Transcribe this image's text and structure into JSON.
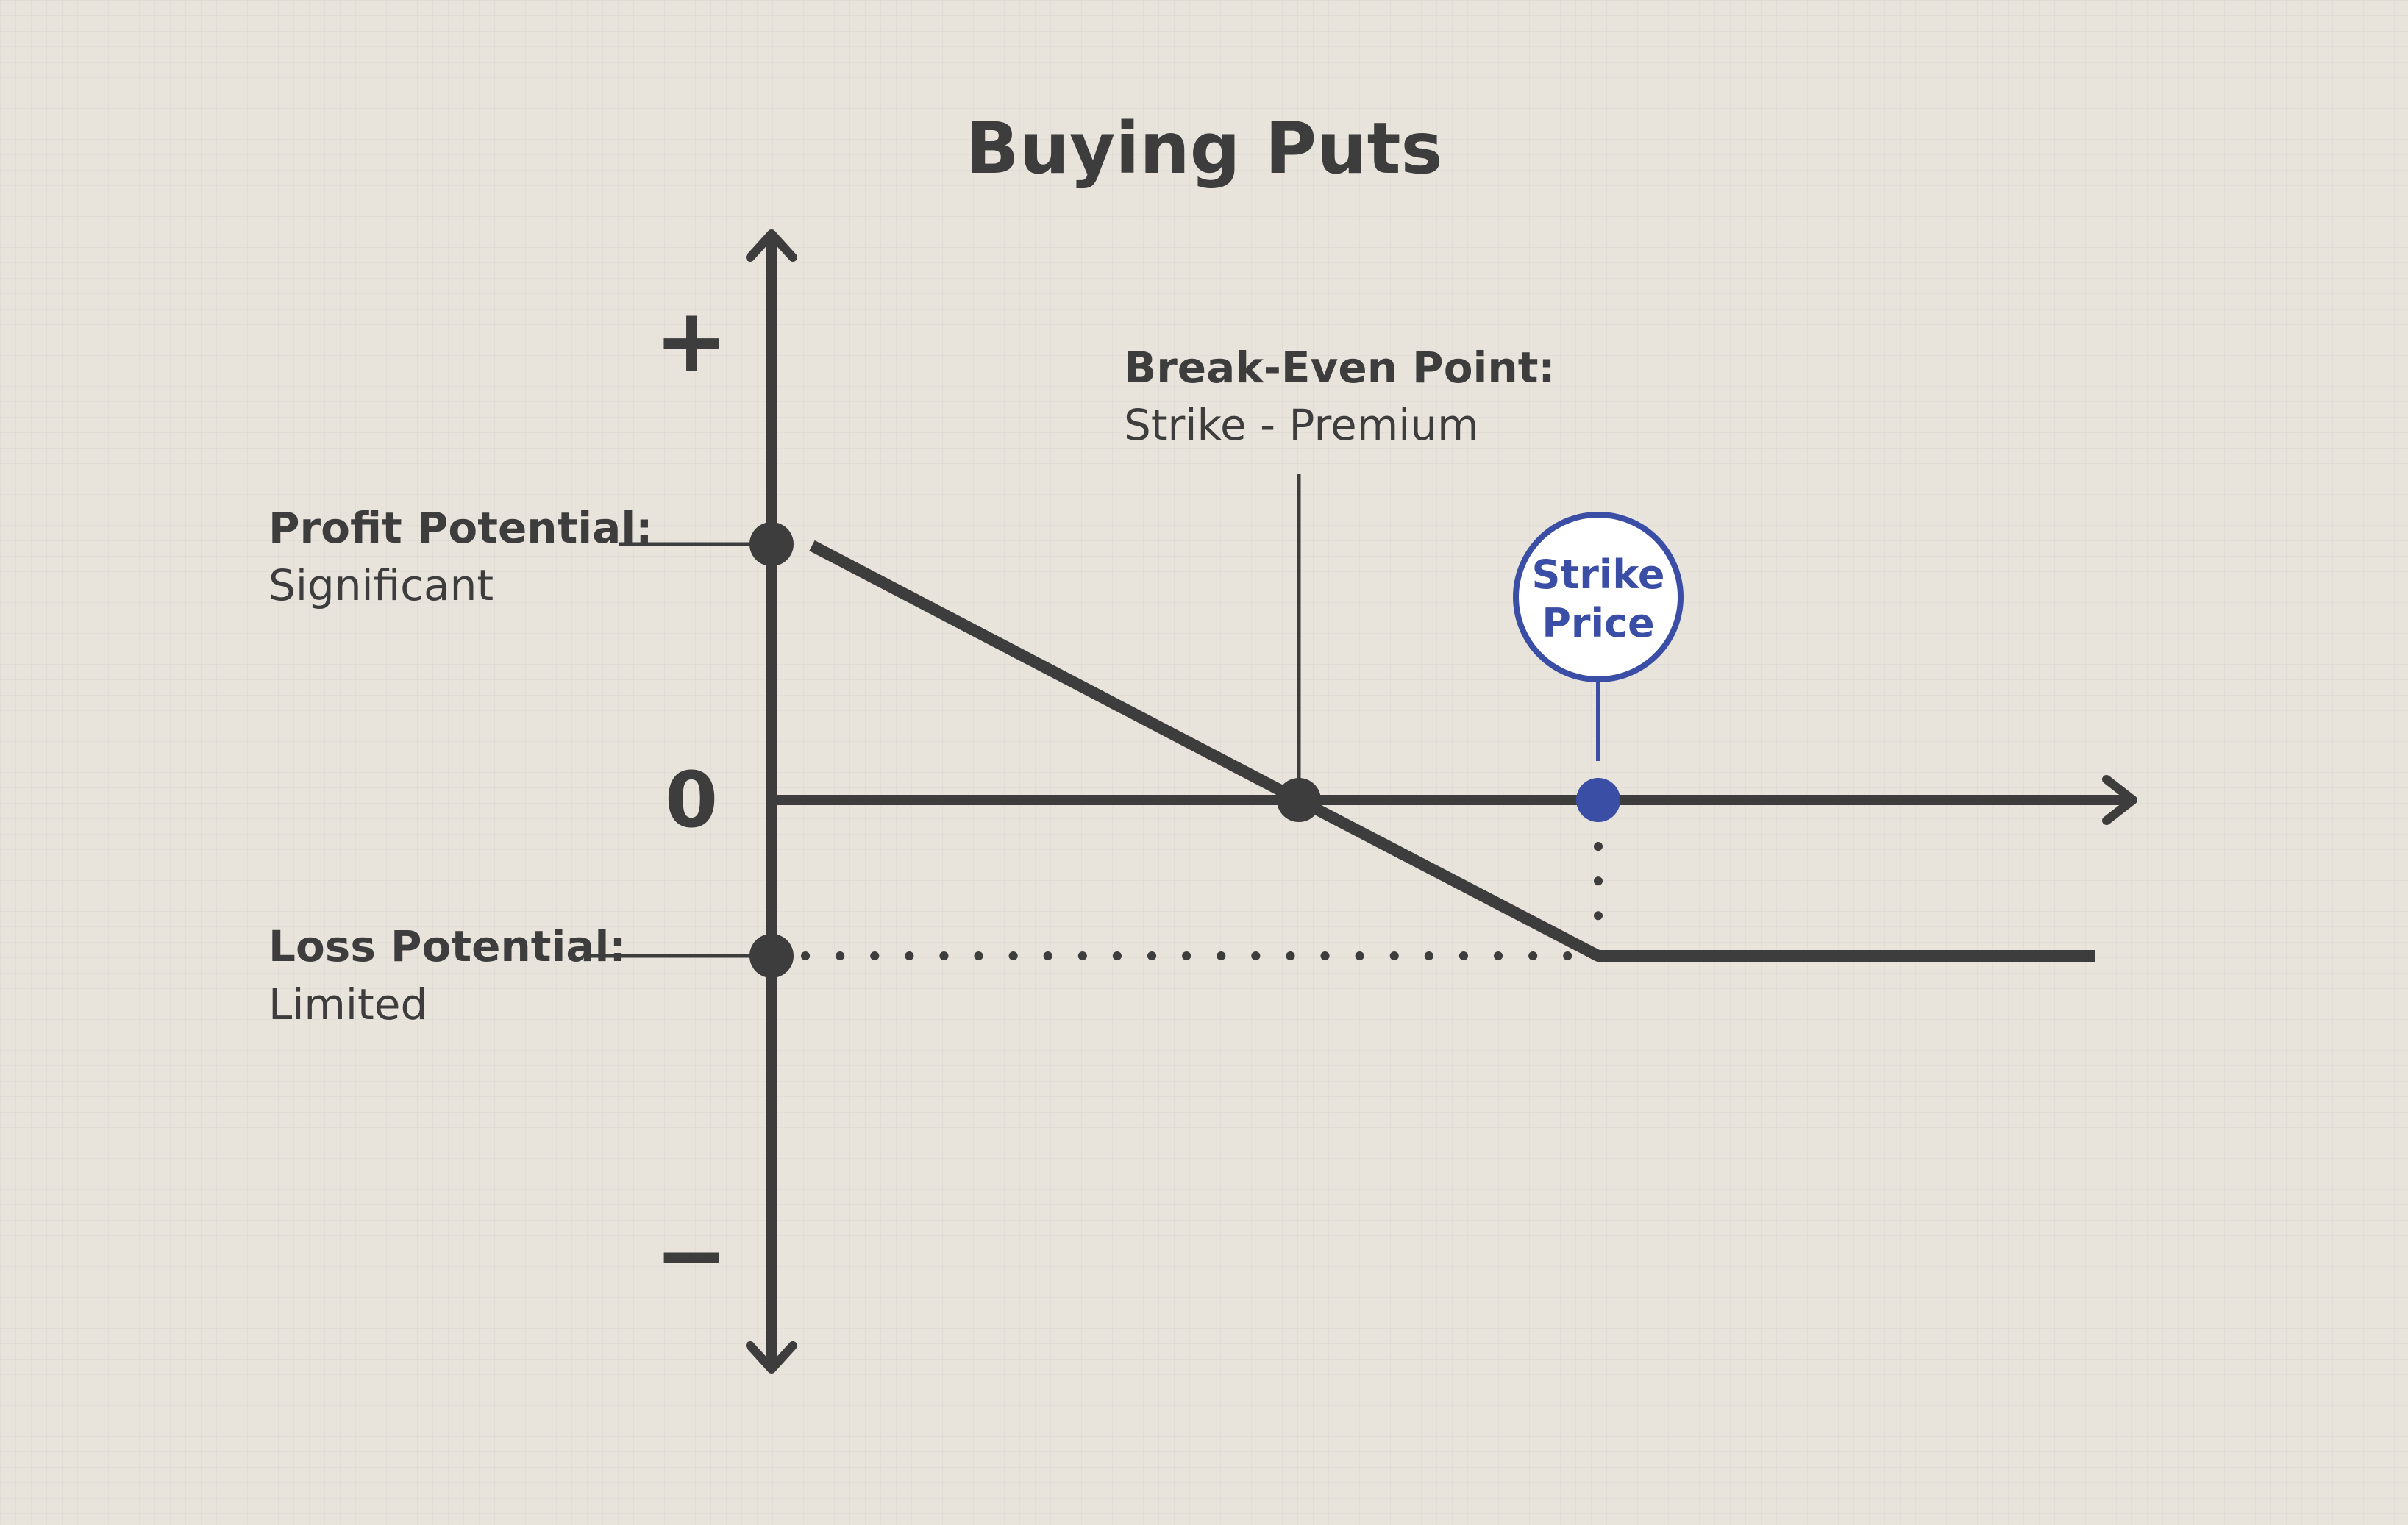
{
  "title": "Buying Puts",
  "y_axis": {
    "plus_sign": "+",
    "zero_label": "0",
    "minus_sign": "−"
  },
  "profit": {
    "heading": "Profit Potential:",
    "value": "Significant"
  },
  "loss": {
    "heading": "Loss Potential:",
    "value": "Limited"
  },
  "break_even": {
    "heading": "Break-Even Point:",
    "formula": "Strike - Premium"
  },
  "strike": {
    "line1": "Strike",
    "line2": "Price"
  },
  "colors": {
    "ink": "#3d3d3d",
    "accent": "#3b4ea6",
    "background": "#e8e4dc"
  }
}
